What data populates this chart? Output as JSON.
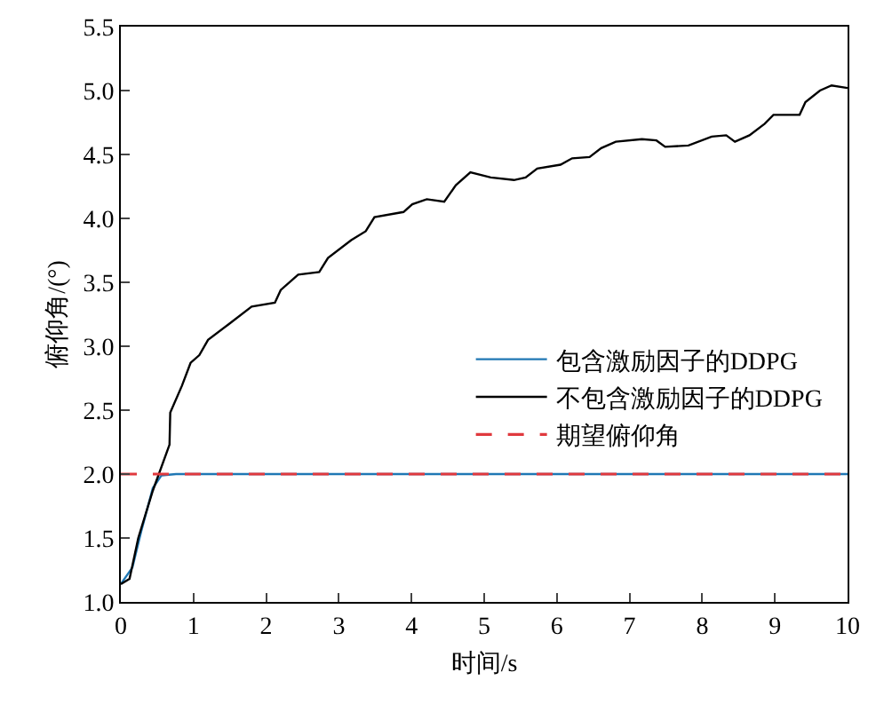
{
  "chart_data": {
    "type": "line",
    "xlabel": "时间/s",
    "ylabel": "俯仰角/(°)",
    "xlim": [
      0,
      10
    ],
    "xticks": [
      0,
      1,
      2,
      3,
      4,
      5,
      6,
      7,
      8,
      9,
      10
    ],
    "ylim": [
      1.0,
      5.5
    ],
    "yticks": [
      {
        "value": 1.0,
        "label": "1.0"
      },
      {
        "value": 1.5,
        "label": "1.5"
      },
      {
        "value": 2.0,
        "label": "2.0"
      },
      {
        "value": 2.5,
        "label": "2.5"
      },
      {
        "value": 3.0,
        "label": "3.0"
      },
      {
        "value": 3.5,
        "label": "3.5"
      },
      {
        "value": 4.0,
        "label": "4.0"
      },
      {
        "value": 4.5,
        "label": "4.5"
      },
      {
        "value": 5.0,
        "label": "5.0"
      },
      {
        "value": 5.5,
        "label": "5.5"
      }
    ],
    "legend": "right",
    "marker": "none",
    "series": [
      {
        "name": "包含激励因子的DDPG",
        "color": "#1f77b4",
        "line_style": "solid",
        "x": [
          0,
          0.16,
          0.28,
          0.44,
          0.56,
          0.76,
          10
        ],
        "values": [
          1.14,
          1.27,
          1.55,
          1.89,
          1.99,
          2.0,
          2.0
        ]
      },
      {
        "name": "不包含激励因子的DDPG",
        "color": "#000000",
        "line_style": "solid",
        "x": [
          0,
          0.12,
          0.24,
          0.44,
          0.67,
          0.68,
          0.84,
          0.96,
          1.08,
          1.2,
          1.48,
          1.8,
          2.12,
          2.2,
          2.44,
          2.73,
          2.85,
          3.17,
          3.37,
          3.49,
          3.89,
          4.01,
          4.21,
          4.45,
          4.61,
          4.81,
          5.09,
          5.41,
          5.57,
          5.73,
          6.05,
          6.21,
          6.45,
          6.61,
          6.81,
          7.17,
          7.37,
          7.49,
          7.81,
          8.13,
          8.33,
          8.45,
          8.65,
          8.86,
          8.98,
          9.34,
          9.42,
          9.62,
          9.78,
          10
        ],
        "values": [
          1.14,
          1.18,
          1.5,
          1.87,
          2.23,
          2.48,
          2.69,
          2.87,
          2.93,
          3.05,
          3.17,
          3.31,
          3.34,
          3.44,
          3.56,
          3.58,
          3.69,
          3.83,
          3.9,
          4.01,
          4.05,
          4.11,
          4.15,
          4.13,
          4.26,
          4.36,
          4.32,
          4.3,
          4.32,
          4.39,
          4.42,
          4.47,
          4.48,
          4.55,
          4.6,
          4.62,
          4.61,
          4.56,
          4.57,
          4.64,
          4.65,
          4.6,
          4.65,
          4.74,
          4.81,
          4.81,
          4.91,
          5.0,
          5.04,
          5.02
        ]
      },
      {
        "name": "期望俯仰角",
        "color": "#e0393e",
        "line_style": "dashed",
        "x": [
          0,
          10
        ],
        "values": [
          2.0,
          2.0
        ]
      }
    ]
  }
}
